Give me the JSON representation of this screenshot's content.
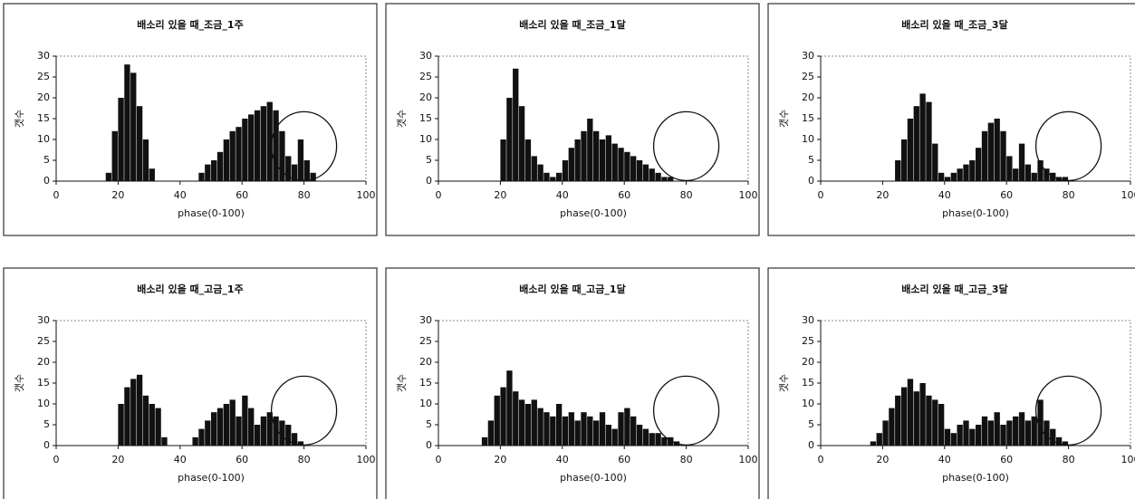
{
  "chart_data": [
    {
      "type": "histogram",
      "title": "배소리 있을 때_조금_1주",
      "xlabel": "phase(0-100)",
      "ylabel": "갯수",
      "color": "#111111",
      "bins": [
        0,
        2,
        4,
        6,
        8,
        10,
        12,
        14,
        16,
        18,
        20,
        22,
        24,
        26,
        28,
        30,
        32,
        34,
        36,
        38,
        40,
        42,
        44,
        46,
        48,
        50,
        52,
        54,
        56,
        58,
        60,
        62,
        64,
        66,
        68,
        70,
        72,
        74,
        76,
        78,
        80,
        82,
        84,
        86,
        88,
        90,
        92,
        94,
        96,
        98,
        100
      ],
      "values": [
        0,
        0,
        0,
        0,
        0,
        0,
        0,
        0,
        2,
        12,
        20,
        28,
        26,
        18,
        10,
        3,
        0,
        0,
        0,
        0,
        0,
        0,
        0,
        2,
        4,
        5,
        7,
        10,
        12,
        13,
        15,
        16,
        17,
        18,
        19,
        17,
        12,
        6,
        4,
        10,
        5,
        2,
        0,
        0,
        0,
        0,
        0,
        0,
        0,
        0
      ],
      "xlim": [
        0,
        100
      ],
      "ylim": [
        0,
        30
      ],
      "xticks": [
        0,
        20,
        40,
        60,
        80,
        100
      ],
      "yticks": [
        0,
        5,
        10,
        15,
        20,
        25,
        30
      ]
    },
    {
      "type": "histogram",
      "title": "배소리 있을 때_조금_1달",
      "xlabel": "phase(0-100)",
      "ylabel": "갯수",
      "color": "#111111",
      "bins": [
        0,
        2,
        4,
        6,
        8,
        10,
        12,
        14,
        16,
        18,
        20,
        22,
        24,
        26,
        28,
        30,
        32,
        34,
        36,
        38,
        40,
        42,
        44,
        46,
        48,
        50,
        52,
        54,
        56,
        58,
        60,
        62,
        64,
        66,
        68,
        70,
        72,
        74,
        76,
        78,
        80,
        82,
        84,
        86,
        88,
        90,
        92,
        94,
        96,
        98,
        100
      ],
      "values": [
        0,
        0,
        0,
        0,
        0,
        0,
        0,
        0,
        0,
        0,
        10,
        20,
        27,
        18,
        10,
        6,
        4,
        2,
        1,
        2,
        5,
        8,
        10,
        12,
        15,
        12,
        10,
        11,
        9,
        8,
        7,
        6,
        5,
        4,
        3,
        2,
        1,
        1,
        0,
        0,
        0,
        0,
        0,
        0,
        0,
        0,
        0,
        0,
        0,
        0
      ],
      "xlim": [
        0,
        100
      ],
      "ylim": [
        0,
        30
      ],
      "xticks": [
        0,
        20,
        40,
        60,
        80,
        100
      ],
      "yticks": [
        0,
        5,
        10,
        15,
        20,
        25,
        30
      ]
    },
    {
      "type": "histogram",
      "title": "배소리 있을 때_조금_3달",
      "xlabel": "phase(0-100)",
      "ylabel": "갯수",
      "color": "#111111",
      "bins": [
        0,
        2,
        4,
        6,
        8,
        10,
        12,
        14,
        16,
        18,
        20,
        22,
        24,
        26,
        28,
        30,
        32,
        34,
        36,
        38,
        40,
        42,
        44,
        46,
        48,
        50,
        52,
        54,
        56,
        58,
        60,
        62,
        64,
        66,
        68,
        70,
        72,
        74,
        76,
        78,
        80,
        82,
        84,
        86,
        88,
        90,
        92,
        94,
        96,
        98,
        100
      ],
      "values": [
        0,
        0,
        0,
        0,
        0,
        0,
        0,
        0,
        0,
        0,
        0,
        0,
        5,
        10,
        15,
        18,
        21,
        19,
        9,
        2,
        1,
        2,
        3,
        4,
        5,
        8,
        12,
        14,
        15,
        12,
        6,
        3,
        9,
        4,
        2,
        5,
        3,
        2,
        1,
        1,
        0,
        0,
        0,
        0,
        0,
        0,
        0,
        0,
        0,
        0
      ],
      "xlim": [
        0,
        100
      ],
      "ylim": [
        0,
        30
      ],
      "xticks": [
        0,
        20,
        40,
        60,
        80,
        100
      ],
      "yticks": [
        0,
        5,
        10,
        15,
        20,
        25,
        30
      ]
    },
    {
      "type": "histogram",
      "title": "배소리 있을 때_고금_1주",
      "xlabel": "phase(0-100)",
      "ylabel": "갯수",
      "color": "#111111",
      "bins": [
        0,
        2,
        4,
        6,
        8,
        10,
        12,
        14,
        16,
        18,
        20,
        22,
        24,
        26,
        28,
        30,
        32,
        34,
        36,
        38,
        40,
        42,
        44,
        46,
        48,
        50,
        52,
        54,
        56,
        58,
        60,
        62,
        64,
        66,
        68,
        70,
        72,
        74,
        76,
        78,
        80,
        82,
        84,
        86,
        88,
        90,
        92,
        94,
        96,
        98,
        100
      ],
      "values": [
        0,
        0,
        0,
        0,
        0,
        0,
        0,
        0,
        0,
        0,
        10,
        14,
        16,
        17,
        12,
        10,
        9,
        2,
        0,
        0,
        0,
        0,
        2,
        4,
        6,
        8,
        9,
        10,
        11,
        7,
        12,
        9,
        5,
        7,
        8,
        7,
        6,
        5,
        3,
        1,
        0,
        0,
        0,
        0,
        0,
        0,
        0,
        0,
        0,
        0
      ],
      "xlim": [
        0,
        100
      ],
      "ylim": [
        0,
        30
      ],
      "xticks": [
        0,
        20,
        40,
        60,
        80,
        100
      ],
      "yticks": [
        0,
        5,
        10,
        15,
        20,
        25,
        30
      ]
    },
    {
      "type": "histogram",
      "title": "배소리 있을 때_고금_1달",
      "xlabel": "phase(0-100)",
      "ylabel": "갯수",
      "color": "#111111",
      "bins": [
        0,
        2,
        4,
        6,
        8,
        10,
        12,
        14,
        16,
        18,
        20,
        22,
        24,
        26,
        28,
        30,
        32,
        34,
        36,
        38,
        40,
        42,
        44,
        46,
        48,
        50,
        52,
        54,
        56,
        58,
        60,
        62,
        64,
        66,
        68,
        70,
        72,
        74,
        76,
        78,
        80,
        82,
        84,
        86,
        88,
        90,
        92,
        94,
        96,
        98,
        100
      ],
      "values": [
        0,
        0,
        0,
        0,
        0,
        0,
        0,
        2,
        6,
        12,
        14,
        18,
        13,
        11,
        10,
        11,
        9,
        8,
        7,
        10,
        7,
        8,
        6,
        8,
        7,
        6,
        8,
        5,
        4,
        8,
        9,
        7,
        5,
        4,
        3,
        3,
        2,
        2,
        1,
        0,
        0,
        0,
        0,
        0,
        0,
        0,
        0,
        0,
        0,
        0
      ],
      "xlim": [
        0,
        100
      ],
      "ylim": [
        0,
        30
      ],
      "xticks": [
        0,
        20,
        40,
        60,
        80,
        100
      ],
      "yticks": [
        0,
        5,
        10,
        15,
        20,
        25,
        30
      ]
    },
    {
      "type": "histogram",
      "title": "배소리 있을 때_고금_3달",
      "xlabel": "phase(0-100)",
      "ylabel": "갯수",
      "color": "#111111",
      "bins": [
        0,
        2,
        4,
        6,
        8,
        10,
        12,
        14,
        16,
        18,
        20,
        22,
        24,
        26,
        28,
        30,
        32,
        34,
        36,
        38,
        40,
        42,
        44,
        46,
        48,
        50,
        52,
        54,
        56,
        58,
        60,
        62,
        64,
        66,
        68,
        70,
        72,
        74,
        76,
        78,
        80,
        82,
        84,
        86,
        88,
        90,
        92,
        94,
        96,
        98,
        100
      ],
      "values": [
        0,
        0,
        0,
        0,
        0,
        0,
        0,
        0,
        1,
        3,
        6,
        9,
        12,
        14,
        16,
        13,
        15,
        12,
        11,
        10,
        4,
        3,
        5,
        6,
        4,
        5,
        7,
        6,
        8,
        5,
        6,
        7,
        8,
        6,
        7,
        11,
        6,
        4,
        2,
        1,
        0,
        0,
        0,
        0,
        0,
        0,
        0,
        0,
        0,
        0
      ],
      "xlim": [
        0,
        100
      ],
      "ylim": [
        0,
        30
      ],
      "xticks": [
        0,
        20,
        40,
        60,
        80,
        100
      ],
      "yticks": [
        0,
        5,
        10,
        15,
        20,
        25,
        30
      ]
    }
  ]
}
